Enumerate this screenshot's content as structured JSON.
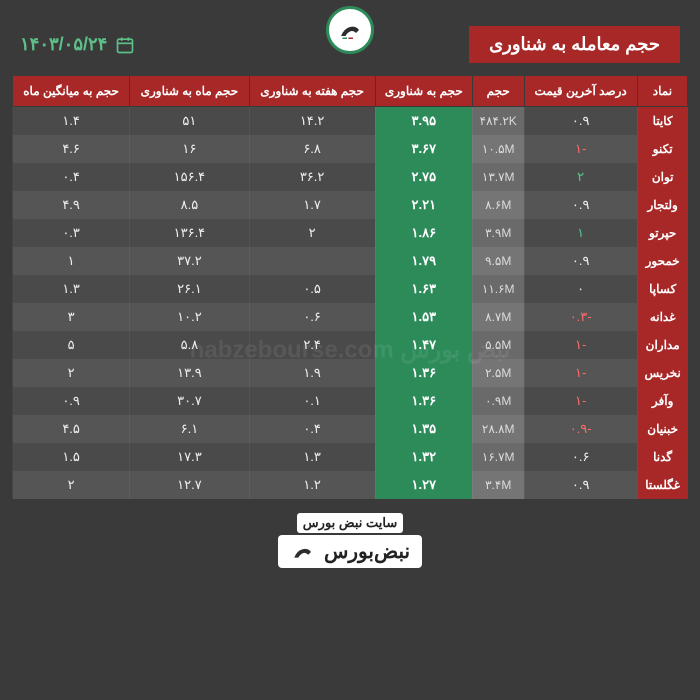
{
  "title": "حجم معامله به شناوری",
  "date": "۱۴۰۳/۰۵/۲۴",
  "watermark": "نبض بورس nabzebourse.com",
  "footer_text": "سایت نبض بورس",
  "footer_brand": "نبض‌بورس",
  "columns": [
    "نماد",
    "درصد آخرین قیمت",
    "حجم",
    "حجم به شناوری",
    "حجم هفته به شناوری",
    "حجم ماه به شناوری",
    "حجم به میانگین ماه"
  ],
  "colors": {
    "bg": "#3a3a3a",
    "header_red": "#a82828",
    "highlight_green": "#2d8b5a",
    "accent_green": "#5cc088",
    "neg": "#ff6b6b",
    "row_odd": "#4a4a4a",
    "row_even": "#555555",
    "vol_cell": "#6a6a6a"
  },
  "rows": [
    {
      "symbol": "کایتا",
      "pct": "۰.۹",
      "pct_class": "",
      "vol": "۴۸۴.۲K",
      "r": "۳.۹۵",
      "w": "۱۴.۲",
      "m": "۵۱",
      "a": "۱.۴"
    },
    {
      "symbol": "تکنو",
      "pct": "-۱",
      "pct_class": "neg",
      "vol": "۱۰.۵M",
      "r": "۳.۶۷",
      "w": "۶.۸",
      "m": "۱۶",
      "a": "۴.۶"
    },
    {
      "symbol": "توان",
      "pct": "۲",
      "pct_class": "pos",
      "vol": "۱۳.۷M",
      "r": "۲.۷۵",
      "w": "۳۶.۲",
      "m": "۱۵۶.۴",
      "a": "۰.۴"
    },
    {
      "symbol": "ولتجار",
      "pct": "۰.۹",
      "pct_class": "",
      "vol": "۸.۶M",
      "r": "۲.۲۱",
      "w": "۱.۷",
      "m": "۸.۵",
      "a": "۴.۹"
    },
    {
      "symbol": "حپرتو",
      "pct": "۱",
      "pct_class": "pos",
      "vol": "۳.۹M",
      "r": "۱.۸۶",
      "w": "۲",
      "m": "۱۳۶.۴",
      "a": "۰.۳"
    },
    {
      "symbol": "خمحور",
      "pct": "۰.۹",
      "pct_class": "",
      "vol": "۹.۵M",
      "r": "۱.۷۹",
      "w": "",
      "m": "۳۷.۲",
      "a": "۱"
    },
    {
      "symbol": "کساپا",
      "pct": "۰",
      "pct_class": "",
      "vol": "۱۱.۶M",
      "r": "۱.۶۳",
      "w": "۰.۵",
      "m": "۲۶.۱",
      "a": "۱.۳"
    },
    {
      "symbol": "غدانه",
      "pct": "-۰.۳",
      "pct_class": "neg",
      "vol": "۸.۷M",
      "r": "۱.۵۳",
      "w": "۰.۶",
      "m": "۱۰.۲",
      "a": "۳"
    },
    {
      "symbol": "مداران",
      "pct": "-۱",
      "pct_class": "neg",
      "vol": "۵.۵M",
      "r": "۱.۴۷",
      "w": "۲.۴",
      "m": "۵.۸",
      "a": "۵"
    },
    {
      "symbol": "نخریس",
      "pct": "-۱",
      "pct_class": "neg",
      "vol": "۲.۵M",
      "r": "۱.۳۶",
      "w": "۱.۹",
      "m": "۱۳.۹",
      "a": "۲"
    },
    {
      "symbol": "وآفر",
      "pct": "-۱",
      "pct_class": "neg",
      "vol": "۰.۹M",
      "r": "۱.۳۶",
      "w": "۰.۱",
      "m": "۳۰.۷",
      "a": "۰.۹"
    },
    {
      "symbol": "خبنیان",
      "pct": "-۰.۹",
      "pct_class": "neg",
      "vol": "۲۸.۸M",
      "r": "۱.۳۵",
      "w": "۰.۴",
      "m": "۶.۱",
      "a": "۴.۵"
    },
    {
      "symbol": "گدنا",
      "pct": "۰.۶",
      "pct_class": "",
      "vol": "۱۶.۷M",
      "r": "۱.۳۲",
      "w": "۱.۳",
      "m": "۱۷.۳",
      "a": "۱.۵"
    },
    {
      "symbol": "غگلستا",
      "pct": "۰.۹",
      "pct_class": "",
      "vol": "۳.۴M",
      "r": "۱.۲۷",
      "w": "۱.۲",
      "m": "۱۲.۷",
      "a": "۲"
    }
  ]
}
